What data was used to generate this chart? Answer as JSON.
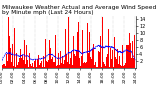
{
  "title": "Milwaukee Weather Actual and Average Wind Speed by Minute mph (Last 24 Hours)",
  "n_points": 1440,
  "ylim": [
    0,
    15
  ],
  "yticks": [
    2,
    4,
    6,
    8,
    10,
    12,
    14
  ],
  "background_color": "#ffffff",
  "bar_color": "#ff0000",
  "line_color": "#0000ff",
  "grid_color": "#999999",
  "title_fontsize": 4.2,
  "tick_fontsize": 3.5,
  "seed": 42,
  "n_gridlines": 7,
  "wind_pattern": [
    5.2,
    4.8,
    4.1,
    3.6,
    3.2,
    2.9,
    2.5,
    2.3,
    2.8,
    3.5,
    3.8,
    4.2,
    4.8,
    5.1,
    5.5,
    5.8,
    6.0,
    6.2,
    6.0,
    5.8,
    5.5,
    5.2,
    4.9,
    4.6
  ]
}
